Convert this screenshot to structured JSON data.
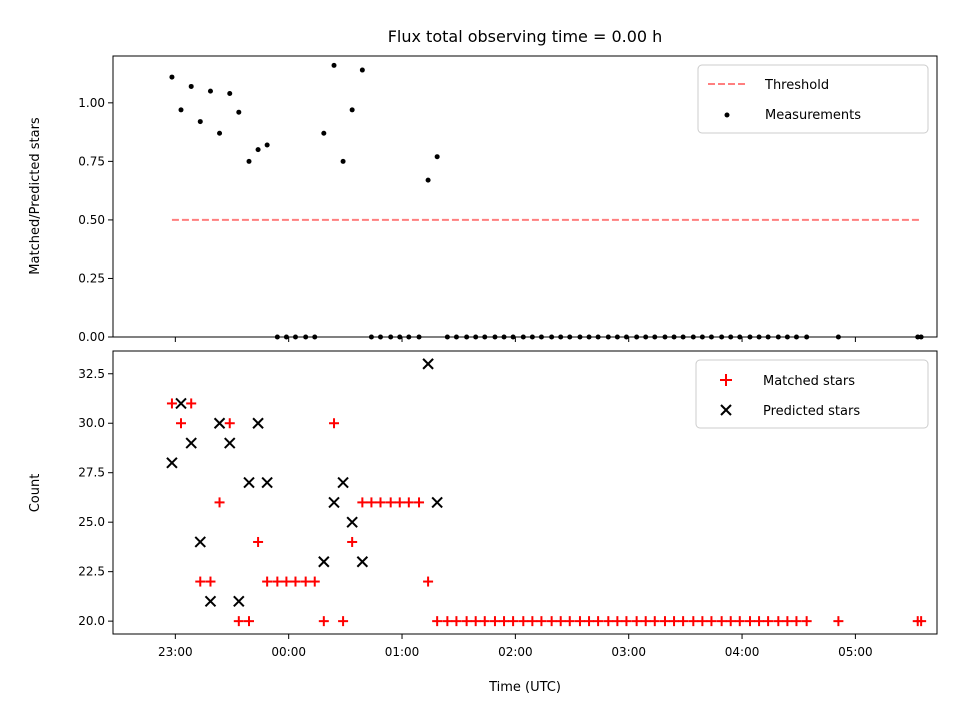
{
  "chart_data": [
    {
      "type": "scatter",
      "title": "Flux total observing time = 0.00 h",
      "xlabel": "",
      "ylabel": "Matched/Predicted stars",
      "ylim": [
        0.0,
        1.2
      ],
      "yticks": [
        0.0,
        0.25,
        0.5,
        0.75,
        1.0
      ],
      "ytick_labels": [
        "0.00",
        "0.25",
        "0.50",
        "0.75",
        "1.00"
      ],
      "xlim_hours": [
        -0.55,
        6.72
      ],
      "xticks_hours": [
        0,
        1,
        2,
        3,
        4,
        5,
        6
      ],
      "legend_position": "upper right",
      "series": [
        {
          "name": "Threshold",
          "style": "dashed-line",
          "color": "#ff7f7f",
          "x_hours": [
            -0.03,
            6.58
          ],
          "y": [
            0.5,
            0.5
          ]
        },
        {
          "name": "Measurements",
          "style": "dot",
          "color": "#000000",
          "x_hours": [
            -0.03,
            0.05,
            0.14,
            0.22,
            0.31,
            0.39,
            0.48,
            0.56,
            0.65,
            0.73,
            0.81,
            0.9,
            0.98,
            1.06,
            1.15,
            1.23,
            1.31,
            1.4,
            1.48,
            1.56,
            1.65,
            1.73,
            1.81,
            1.9,
            1.98,
            2.06,
            2.15,
            2.23,
            2.31,
            2.4,
            2.48,
            2.57,
            2.65,
            2.73,
            2.82,
            2.9,
            2.98,
            3.07,
            3.15,
            3.23,
            3.32,
            3.4,
            3.48,
            3.57,
            3.65,
            3.73,
            3.82,
            3.9,
            3.98,
            4.07,
            4.15,
            4.23,
            4.32,
            4.4,
            4.48,
            4.57,
            4.65,
            4.73,
            4.82,
            4.9,
            4.98,
            5.07,
            5.15,
            5.23,
            5.32,
            5.4,
            5.48,
            5.57,
            5.85,
            6.55,
            6.58
          ],
          "y": [
            1.11,
            0.97,
            1.07,
            0.92,
            1.05,
            0.87,
            1.04,
            0.96,
            0.75,
            0.8,
            0.82,
            0.0,
            0.0,
            0.0,
            0.0,
            0.0,
            0.87,
            1.16,
            0.75,
            0.97,
            1.14,
            0.0,
            0.0,
            0.0,
            0.0,
            0.0,
            0.0,
            0.67,
            0.77,
            0.0,
            0.0,
            0.0,
            0.0,
            0.0,
            0.0,
            0.0,
            0.0,
            0.0,
            0.0,
            0.0,
            0.0,
            0.0,
            0.0,
            0.0,
            0.0,
            0.0,
            0.0,
            0.0,
            0.0,
            0.0,
            0.0,
            0.0,
            0.0,
            0.0,
            0.0,
            0.0,
            0.0,
            0.0,
            0.0,
            0.0,
            0.0,
            0.0,
            0.0,
            0.0,
            0.0,
            0.0,
            0.0,
            0.0,
            0.0,
            0.0,
            0.0
          ]
        }
      ]
    },
    {
      "type": "scatter",
      "title": "",
      "xlabel": "Time (UTC)",
      "ylabel": "Count",
      "ylim": [
        19.35,
        33.65
      ],
      "yticks": [
        20.0,
        22.5,
        25.0,
        27.5,
        30.0,
        32.5
      ],
      "ytick_labels": [
        "20.0",
        "22.5",
        "25.0",
        "27.5",
        "30.0",
        "32.5"
      ],
      "xlim_hours": [
        -0.55,
        6.72
      ],
      "xticks_hours": [
        0,
        1,
        2,
        3,
        4,
        5,
        6
      ],
      "xtick_labels": [
        "23:00",
        "00:00",
        "01:00",
        "02:00",
        "03:00",
        "04:00",
        "05:00"
      ],
      "legend_position": "upper right",
      "series": [
        {
          "name": "Matched stars",
          "marker": "plus",
          "color": "#ff0000",
          "x_hours": [
            -0.03,
            0.05,
            0.14,
            0.22,
            0.31,
            0.39,
            0.48,
            0.56,
            0.65,
            0.73,
            0.81,
            0.9,
            0.98,
            1.06,
            1.15,
            1.23,
            1.31,
            1.4,
            1.48,
            1.56,
            1.65,
            1.73,
            1.81,
            1.9,
            1.98,
            2.06,
            2.15,
            2.23,
            2.31,
            2.4,
            2.48,
            2.57,
            2.65,
            2.73,
            2.82,
            2.9,
            2.98,
            3.07,
            3.15,
            3.23,
            3.32,
            3.4,
            3.48,
            3.57,
            3.65,
            3.73,
            3.82,
            3.9,
            3.98,
            4.07,
            4.15,
            4.23,
            4.32,
            4.4,
            4.48,
            4.57,
            4.65,
            4.73,
            4.82,
            4.9,
            4.98,
            5.07,
            5.15,
            5.23,
            5.32,
            5.4,
            5.48,
            5.57,
            5.85,
            6.55,
            6.58
          ],
          "y": [
            31,
            30,
            31,
            22,
            22,
            26,
            30,
            20,
            20,
            24,
            22,
            22,
            22,
            22,
            22,
            22,
            20,
            30,
            20,
            24,
            26,
            26,
            26,
            26,
            26,
            26,
            26,
            22,
            20,
            20,
            20,
            20,
            20,
            20,
            20,
            20,
            20,
            20,
            20,
            20,
            20,
            20,
            20,
            20,
            20,
            20,
            20,
            20,
            20,
            20,
            20,
            20,
            20,
            20,
            20,
            20,
            20,
            20,
            20,
            20,
            20,
            20,
            20,
            20,
            20,
            20,
            20,
            20,
            20,
            20,
            20
          ]
        },
        {
          "name": "Predicted stars",
          "marker": "x",
          "color": "#000000",
          "x_hours": [
            -0.03,
            0.05,
            0.14,
            0.22,
            0.31,
            0.39,
            0.48,
            0.56,
            0.65,
            0.73,
            0.81,
            1.31,
            1.4,
            1.48,
            1.56,
            1.65,
            2.23,
            2.31
          ],
          "y": [
            28,
            31,
            29,
            24,
            21,
            30,
            29,
            21,
            27,
            30,
            27,
            23,
            26,
            27,
            25,
            23,
            33,
            26
          ]
        }
      ]
    }
  ]
}
